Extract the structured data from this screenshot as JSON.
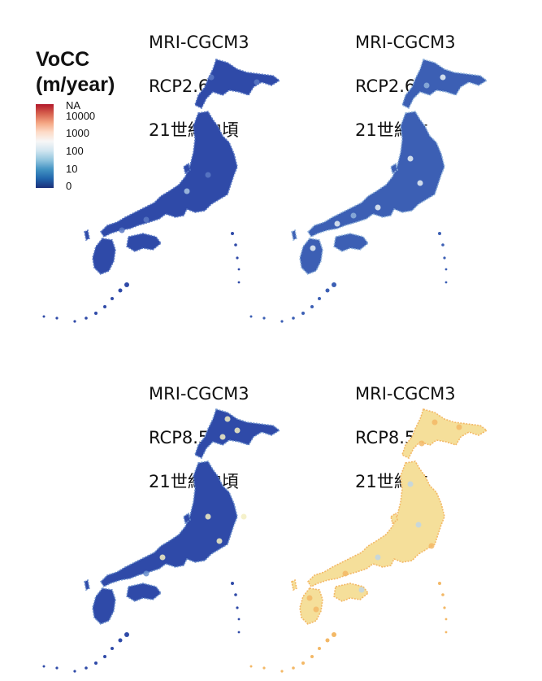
{
  "legend": {
    "title_line1": "VoCC",
    "title_line2": "(m/year)",
    "ticks": [
      "NA",
      "10000",
      "1000",
      "100",
      "10",
      "0"
    ],
    "colors": [
      "#b2182b",
      "#d6604d",
      "#f4a582",
      "#fddbc7",
      "#f7f7f7",
      "#d1e5f0",
      "#92c5de",
      "#4393c3",
      "#2166ac",
      "#1b2f7a"
    ]
  },
  "panels": [
    {
      "line1": "MRI-CGCM3",
      "line2": "RCP2.6",
      "line3": "21世紀中頃",
      "style": "deep-blue"
    },
    {
      "line1": "MRI-CGCM3",
      "line2": "RCP2.6",
      "line3": "21世紀末",
      "style": "mixed-blue"
    },
    {
      "line1": "MRI-CGCM3",
      "line2": "RCP8.5",
      "line3": "21世紀中頃",
      "style": "blue-hot-north"
    },
    {
      "line1": "MRI-CGCM3",
      "line2": "RCP8.5",
      "line3": "21世紀末",
      "style": "warm"
    }
  ],
  "palettes": {
    "deep-blue": {
      "fill": "#2f4aa8",
      "mid": "#5a79c4",
      "light": "#a9c4e2"
    },
    "mixed-blue": {
      "fill": "#3c5fb4",
      "mid": "#8fb2db",
      "light": "#e7f1f5"
    },
    "blue-hot-north": {
      "fill": "#2f4aa8",
      "mid": "#6a8fcc",
      "light": "#f3efc2"
    },
    "warm": {
      "fill": "#f5df9a",
      "mid": "#f3b866",
      "light": "#bfd6e5"
    }
  }
}
